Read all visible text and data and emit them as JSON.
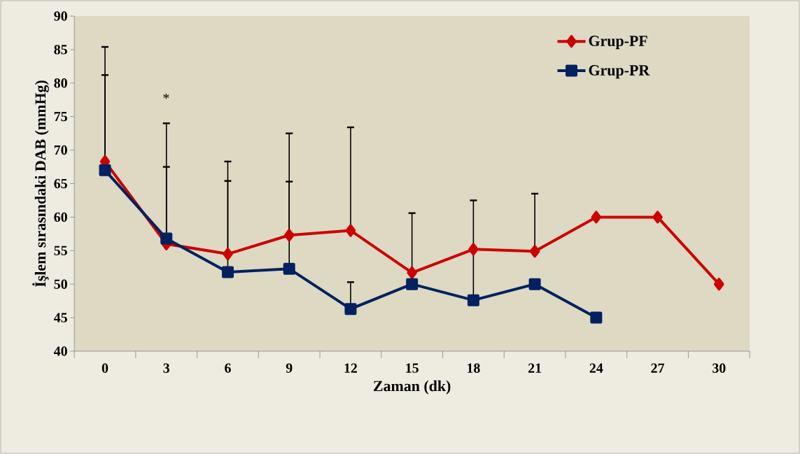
{
  "chart_data": {
    "type": "line",
    "xlabel": "Zaman (dk)",
    "ylabel": "İşlem sırasındaki DAB (mmHg)",
    "categories": [
      "0",
      "3",
      "6",
      "9",
      "12",
      "15",
      "18",
      "21",
      "24",
      "27",
      "30"
    ],
    "series": [
      {
        "name": "Grup-PF",
        "color": "#cc0000",
        "marker": "diamond",
        "values": [
          68.3,
          56,
          54.5,
          57.3,
          58,
          51.7,
          55.2,
          54.9,
          60,
          60,
          50
        ],
        "errors": [
          [
            68.3,
            85.4
          ],
          [
            56,
            74
          ],
          [
            54.5,
            68.3
          ],
          [
            57.3,
            72.5
          ],
          [
            58,
            73.4
          ],
          [
            51.7,
            60.6
          ],
          null,
          [
            54.9,
            63.5
          ],
          null,
          null,
          null
        ]
      },
      {
        "name": "Grup-PR",
        "color": "#03215f",
        "marker": "square",
        "values": [
          67,
          56.8,
          51.8,
          52.3,
          46.3,
          50,
          47.6,
          50,
          45,
          null,
          null
        ],
        "errors": [
          [
            67,
            81.2
          ],
          [
            56.8,
            67.5
          ],
          [
            51.8,
            65.4
          ],
          [
            52.3,
            65.3
          ],
          [
            46.3,
            50.3
          ],
          null,
          [
            47.6,
            62.5
          ],
          null,
          null,
          null,
          null
        ]
      }
    ],
    "ylim": [
      40,
      90
    ],
    "yticks": [
      40,
      45,
      50,
      55,
      60,
      65,
      70,
      75,
      80,
      85,
      90
    ],
    "annotations": [
      "*"
    ],
    "legend": "top right",
    "grid": false
  }
}
